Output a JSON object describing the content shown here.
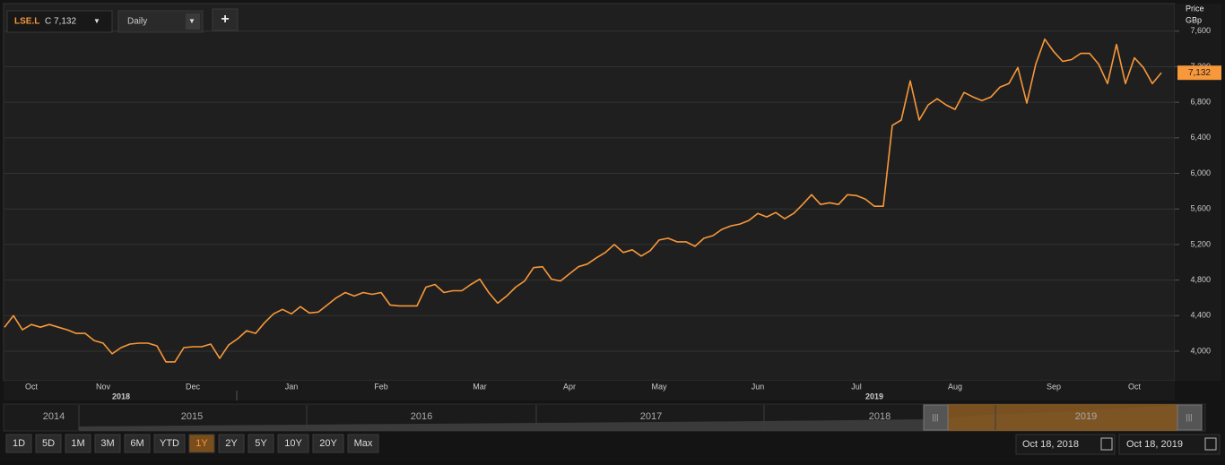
{
  "toolbar": {
    "symbol": "LSE.L",
    "close_label": "C 7,132",
    "interval": "Daily",
    "add_button": "+"
  },
  "chart_data": {
    "type": "line",
    "y_axis_title": "Price",
    "y_axis_unit": "GBp",
    "series": [
      {
        "name": "LSE.L",
        "color": "#f7983a",
        "values": [
          4270,
          4400,
          4240,
          4300,
          4270,
          4300,
          4270,
          4240,
          4200,
          4200,
          4120,
          4090,
          3970,
          4040,
          4080,
          4090,
          4090,
          4060,
          3880,
          3880,
          4040,
          4050,
          4050,
          4080,
          3920,
          4070,
          4140,
          4230,
          4200,
          4320,
          4420,
          4470,
          4420,
          4500,
          4430,
          4440,
          4520,
          4600,
          4660,
          4620,
          4660,
          4640,
          4660,
          4520,
          4510,
          4510,
          4510,
          4720,
          4750,
          4660,
          4680,
          4680,
          4750,
          4810,
          4660,
          4540,
          4620,
          4720,
          4790,
          4940,
          4950,
          4810,
          4790,
          4870,
          4950,
          4980,
          5050,
          5110,
          5200,
          5110,
          5140,
          5070,
          5130,
          5250,
          5270,
          5230,
          5230,
          5180,
          5270,
          5300,
          5370,
          5410,
          5430,
          5470,
          5550,
          5510,
          5560,
          5490,
          5550,
          5650,
          5760,
          5650,
          5670,
          5650,
          5760,
          5750,
          5710,
          5630,
          5630,
          6540,
          6600,
          7040,
          6600,
          6770,
          6840,
          6770,
          6720,
          6910,
          6860,
          6820,
          6860,
          6970,
          7010,
          7190,
          6790,
          7230,
          7510,
          7370,
          7260,
          7280,
          7350,
          7350,
          7230,
          7010,
          7450,
          7010,
          7300,
          7190,
          7010,
          7132
        ]
      }
    ],
    "last_value_label": "7,132",
    "categories": [
      null,
      null,
      null,
      "Oct",
      null,
      null,
      null,
      null,
      null,
      null,
      null,
      "Nov",
      null,
      null,
      null,
      null,
      null,
      null,
      null,
      null,
      null,
      "Dec",
      null,
      null,
      null,
      null,
      null,
      null,
      null,
      null,
      null,
      null,
      "Jan",
      null,
      null,
      null,
      null,
      null,
      null,
      null,
      null,
      null,
      "Feb",
      null,
      null,
      null,
      null,
      null,
      null,
      null,
      null,
      null,
      null,
      "Mar",
      null,
      null,
      null,
      null,
      null,
      null,
      null,
      null,
      null,
      "Apr",
      null,
      null,
      null,
      null,
      null,
      null,
      null,
      null,
      null,
      "May",
      null,
      null,
      null,
      null,
      null,
      null,
      null,
      null,
      null,
      null,
      "Jun",
      null,
      null,
      null,
      null,
      null,
      null,
      null,
      null,
      null,
      null,
      "Jul",
      null,
      null,
      null,
      null,
      null,
      null,
      null,
      null,
      null,
      null,
      "Aug",
      null,
      null,
      null,
      null,
      null,
      null,
      null,
      null,
      null,
      null,
      "Sep",
      null,
      null,
      null,
      null,
      null,
      null,
      null,
      null,
      "Oct",
      null,
      null,
      null
    ],
    "x_year_labels": [
      "2018",
      "2019"
    ],
    "ylim": [
      3667,
      7900
    ],
    "yticks": [
      {
        "value": 4000,
        "label": "4,000"
      },
      {
        "value": 4400,
        "label": "4,400"
      },
      {
        "value": 4800,
        "label": "4,800"
      },
      {
        "value": 5200,
        "label": "5,200"
      },
      {
        "value": 5600,
        "label": "5,600"
      },
      {
        "value": 6000,
        "label": "6,000"
      },
      {
        "value": 6400,
        "label": "6,400"
      },
      {
        "value": 6800,
        "label": "6,800"
      },
      {
        "value": 7200,
        "label": "7,200"
      },
      {
        "value": 7600,
        "label": "7,600"
      }
    ],
    "grid": true
  },
  "navigator": {
    "years": [
      "2014",
      "2015",
      "2016",
      "2017",
      "2018",
      "2019"
    ]
  },
  "range_buttons": [
    "1D",
    "5D",
    "1M",
    "3M",
    "6M",
    "YTD",
    "1Y",
    "2Y",
    "5Y",
    "10Y",
    "20Y",
    "Max"
  ],
  "active_range": "1Y",
  "date_range": {
    "start": "Oct 18, 2018",
    "end": "Oct 18, 2019"
  }
}
